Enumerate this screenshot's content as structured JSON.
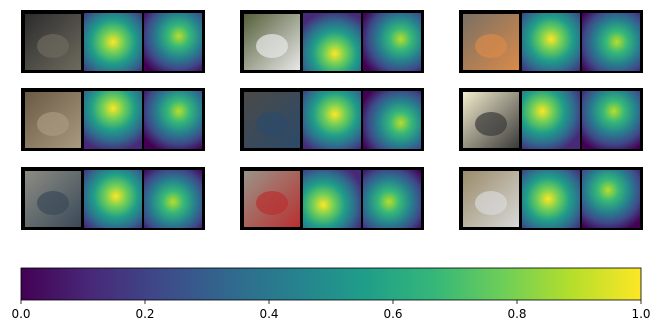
{
  "chart_data": {
    "type": "colorbar",
    "colormap": "viridis",
    "clim": [
      0,
      1
    ],
    "cticks": [
      {
        "value": 0,
        "label": "0.0"
      },
      {
        "value": 0.2,
        "label": "0.2"
      },
      {
        "value": 0.4,
        "label": "0.4"
      },
      {
        "value": 0.6,
        "label": "0.6"
      },
      {
        "value": 0.8,
        "label": "0.8"
      },
      {
        "value": 1,
        "label": "1.0"
      }
    ]
  }
}
